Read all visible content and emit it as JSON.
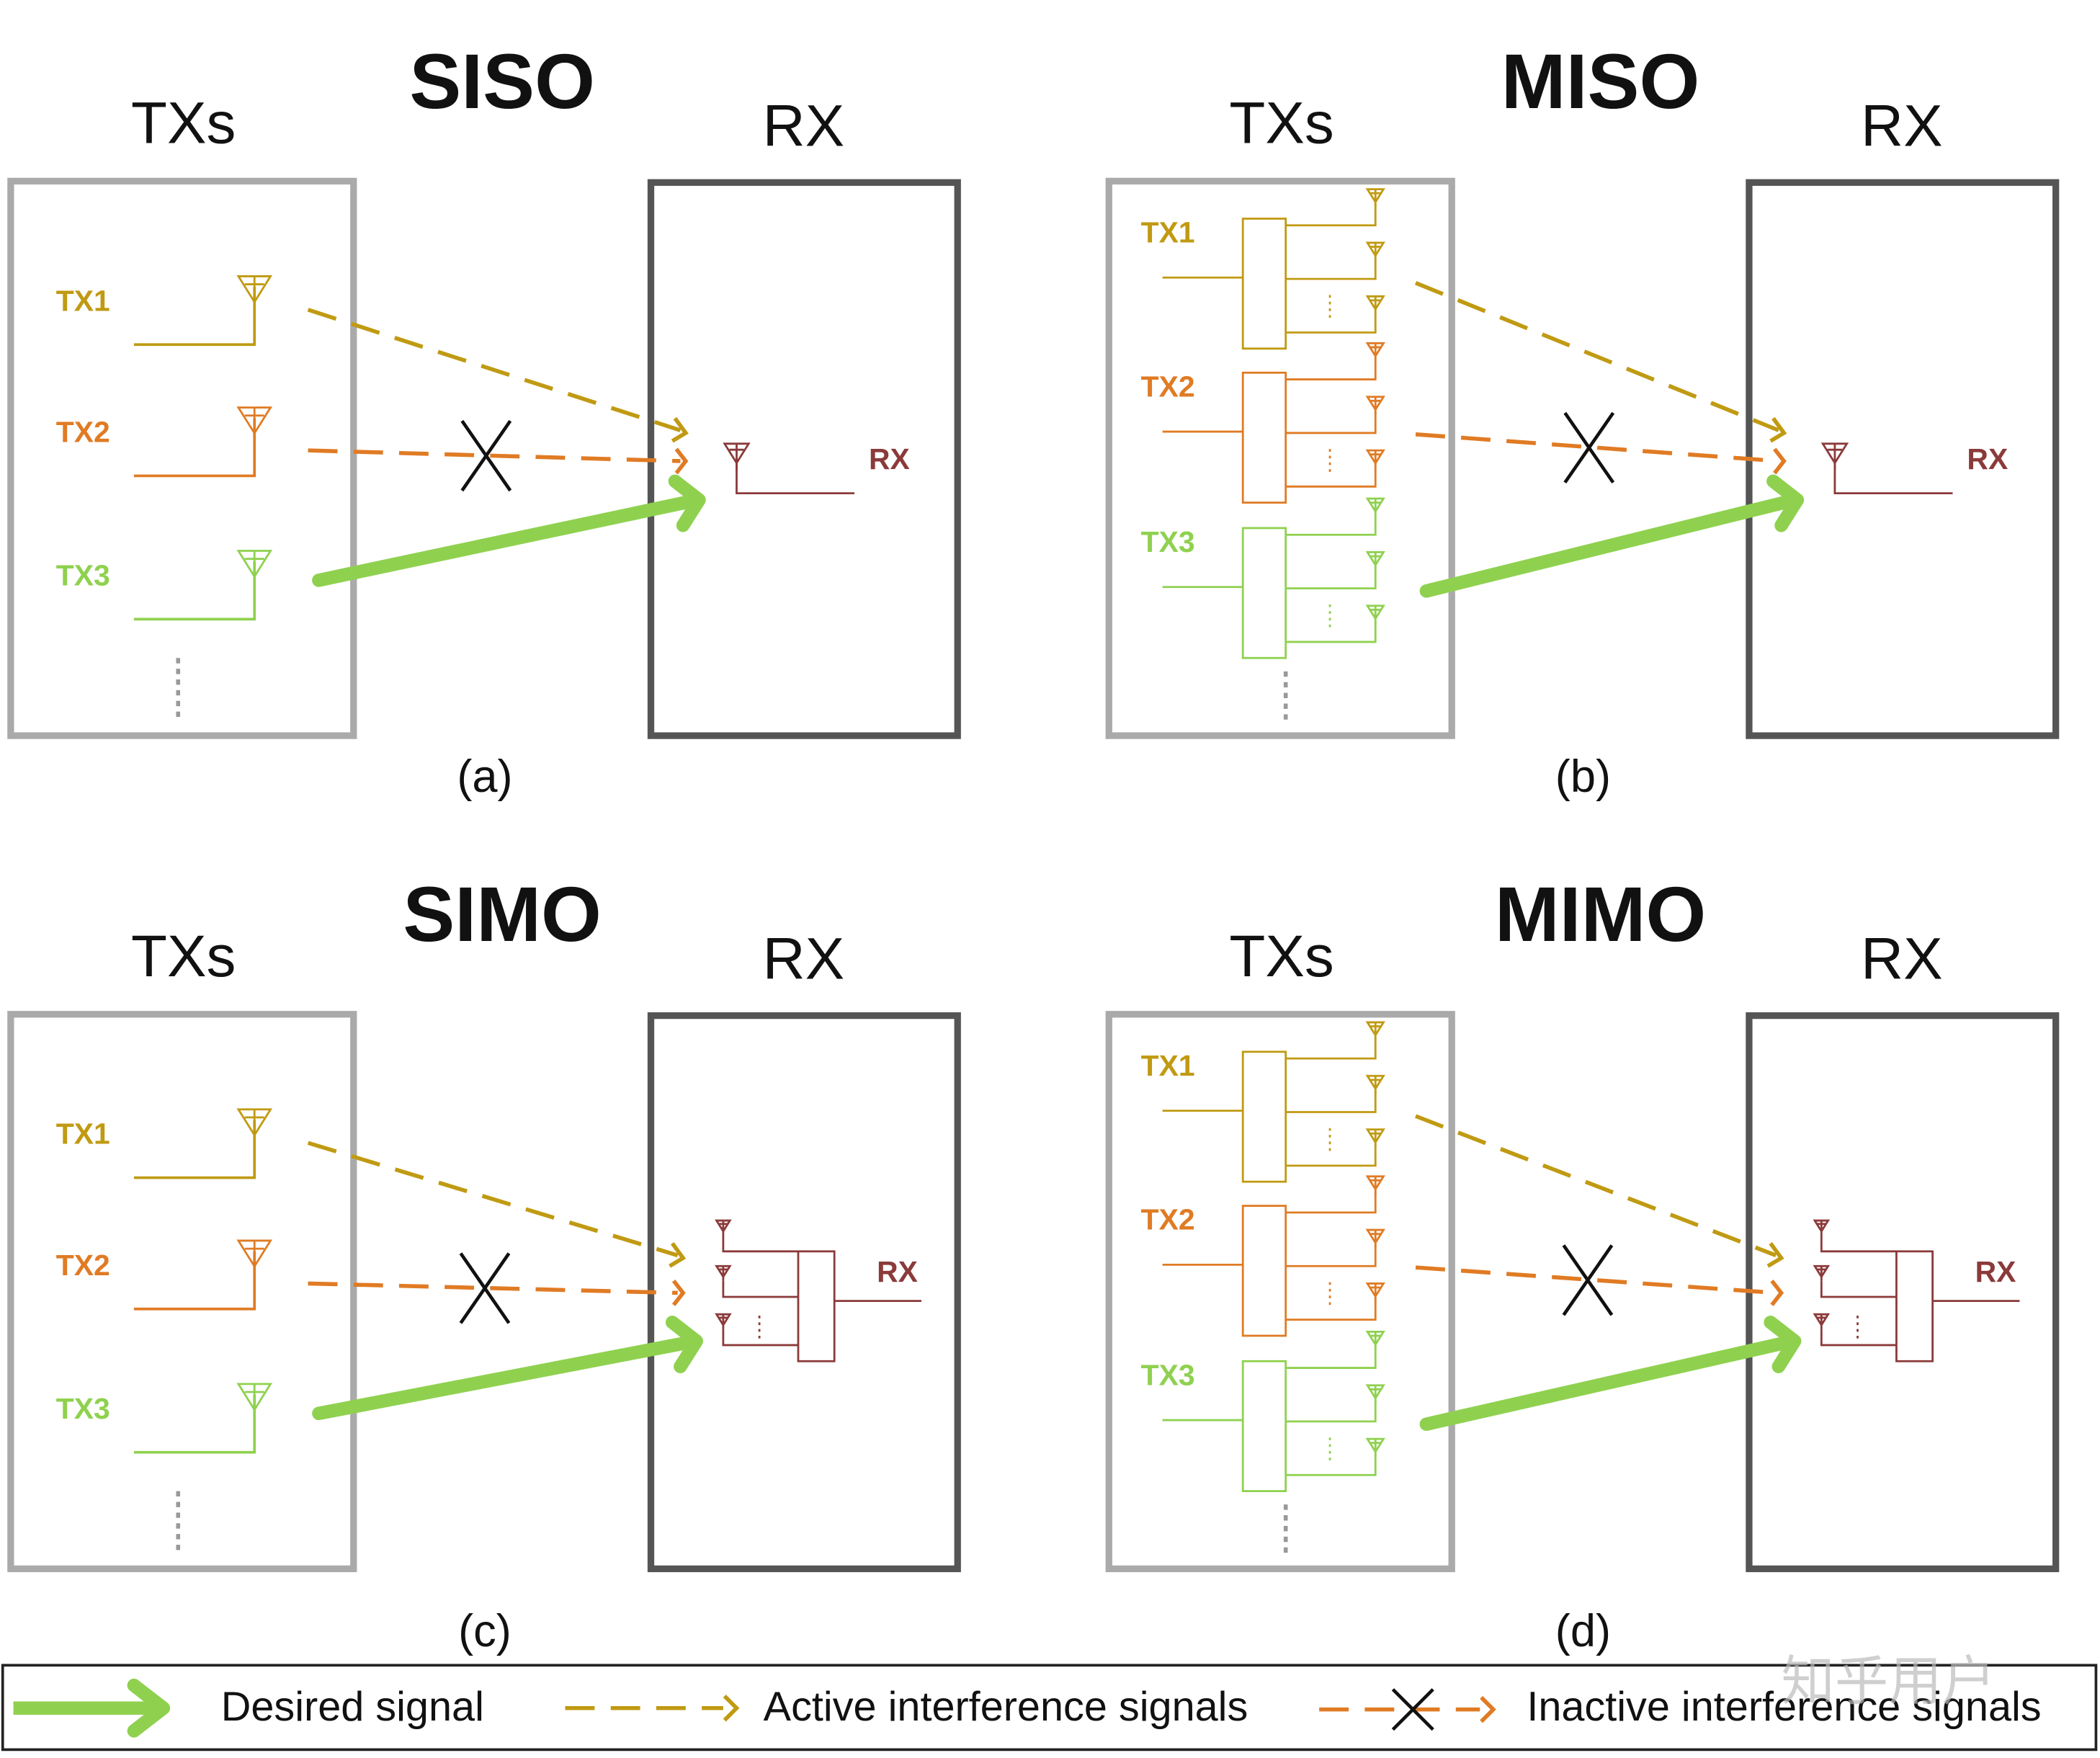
{
  "panels": [
    {
      "title": "SISO",
      "txs_label": "TXs",
      "rx_box_label": "RX",
      "tx_labels": [
        "TX1",
        "TX2",
        "TX3"
      ],
      "rx_label": "RX",
      "caption": "(a)"
    },
    {
      "title": "MISO",
      "txs_label": "TXs",
      "rx_box_label": "RX",
      "tx_labels": [
        "TX1",
        "TX2",
        "TX3"
      ],
      "rx_label": "RX",
      "caption": "(b)"
    },
    {
      "title": "SIMO",
      "txs_label": "TXs",
      "rx_box_label": "RX",
      "tx_labels": [
        "TX1",
        "TX2",
        "TX3"
      ],
      "rx_label": "RX",
      "caption": "(c)"
    },
    {
      "title": "MIMO",
      "txs_label": "TXs",
      "rx_box_label": "RX",
      "tx_labels": [
        "TX1",
        "TX2",
        "TX3"
      ],
      "rx_label": "RX",
      "caption": "(d)"
    }
  ],
  "legend": {
    "desired": "Desired signal",
    "active": "Active interference signals",
    "inactive": "Inactive interference signals"
  },
  "watermark": "知乎用户"
}
